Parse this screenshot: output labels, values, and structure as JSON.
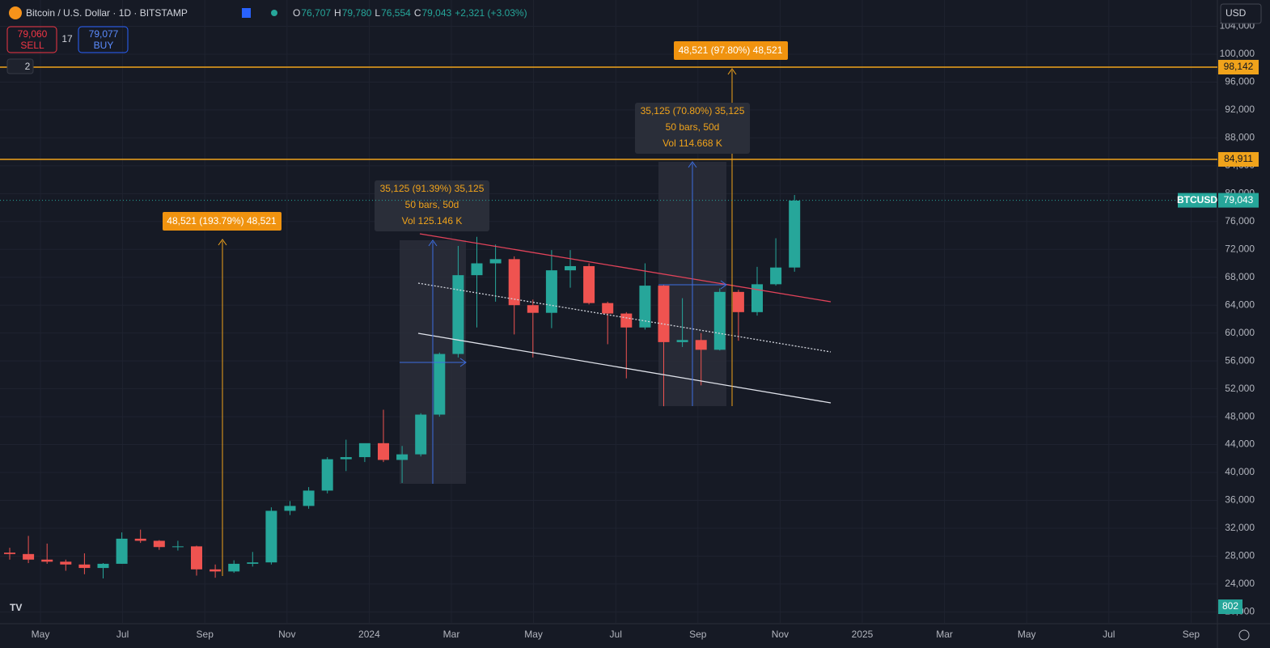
{
  "header": {
    "symbol": "Bitcoin / U.S. Dollar · 1D · BITSTAMP",
    "ohlc": [
      {
        "label": "O",
        "value": "76,707"
      },
      {
        "label": "H",
        "value": "79,780"
      },
      {
        "label": "L",
        "value": "76,554"
      },
      {
        "label": "C",
        "value": "79,043"
      }
    ],
    "change": "+2,321 (+3.03%)"
  },
  "trade": {
    "sell_price": "79,060",
    "sell": "SELL",
    "spread": "17",
    "buy_price": "79,077",
    "buy": "BUY"
  },
  "layers": "2",
  "currency": "USD",
  "chart": {
    "type": "candlestick",
    "ylim": [
      18418,
      107775
    ],
    "yticks": [
      {
        "value": 20000,
        "label": "20,000"
      },
      {
        "value": 24000,
        "label": "24,000"
      },
      {
        "value": 28000,
        "label": "28,000"
      },
      {
        "value": 32000,
        "label": "32,000"
      },
      {
        "value": 36000,
        "label": "36,000"
      },
      {
        "value": 40000,
        "label": "40,000"
      },
      {
        "value": 44000,
        "label": "44,000"
      },
      {
        "value": 48000,
        "label": "48,000"
      },
      {
        "value": 52000,
        "label": "52,000"
      },
      {
        "value": 56000,
        "label": "56,000"
      },
      {
        "value": 60000,
        "label": "60,000"
      },
      {
        "value": 64000,
        "label": "64,000"
      },
      {
        "value": 68000,
        "label": "68,000"
      },
      {
        "value": 72000,
        "label": "72,000"
      },
      {
        "value": 76000,
        "label": "76,000"
      },
      {
        "value": 80000,
        "label": "80,000"
      },
      {
        "value": 84000,
        "label": "84,000"
      },
      {
        "value": 88000,
        "label": "88,000"
      },
      {
        "value": 92000,
        "label": "92,000"
      },
      {
        "value": 96000,
        "label": "96,000"
      },
      {
        "value": 100000,
        "label": "100,000"
      },
      {
        "value": 104000,
        "label": "104,000"
      }
    ],
    "xticks": [
      "May",
      "Jul",
      "Sep",
      "Nov",
      "2024",
      "Mar",
      "May",
      "Jul",
      "Sep",
      "Nov",
      "2025",
      "Mar",
      "May",
      "Jul",
      "Sep"
    ],
    "candles": {
      "open": [
        28500,
        28300,
        27500,
        27200,
        26800,
        26300,
        26900,
        30500,
        30200,
        29300,
        29400,
        26100,
        25800,
        26900,
        27100,
        34500,
        35200,
        37400,
        41900,
        42200,
        44200,
        41800,
        42600,
        48300,
        57000,
        68300,
        70000,
        70600,
        64000,
        62900,
        69000,
        69600,
        64300,
        62800,
        60800,
        66800,
        58700,
        59000,
        57600,
        65900,
        63000,
        67000,
        69400
      ],
      "high": [
        29200,
        30900,
        29800,
        27500,
        28400,
        27000,
        31400,
        31800,
        30300,
        30200,
        29500,
        26800,
        27400,
        28600,
        35000,
        35900,
        37900,
        42200,
        44700,
        44000,
        49000,
        43800,
        48500,
        57200,
        72500,
        73800,
        72700,
        71000,
        64800,
        71900,
        71900,
        70000,
        64500,
        63000,
        70000,
        66900,
        65000,
        60000,
        66400,
        66200,
        69500,
        73600,
        79800
      ],
      "low": [
        27500,
        27000,
        26900,
        25900,
        25400,
        24800,
        26900,
        29900,
        28900,
        28800,
        25200,
        24900,
        25600,
        26500,
        26800,
        33900,
        34800,
        37000,
        40200,
        41500,
        41500,
        38500,
        42300,
        48000,
        56500,
        60800,
        64500,
        59800,
        56500,
        60700,
        66500,
        64100,
        58400,
        53500,
        60500,
        49500,
        58000,
        52500,
        57500,
        58900,
        62500,
        66800,
        68800
      ],
      "close": [
        28300,
        27500,
        27200,
        26800,
        26300,
        26900,
        30500,
        30200,
        29300,
        29400,
        26100,
        25800,
        26900,
        27100,
        34500,
        35200,
        37400,
        41900,
        42200,
        44200,
        41800,
        42600,
        48300,
        57000,
        68300,
        70000,
        70600,
        64000,
        62900,
        69000,
        69600,
        64300,
        62800,
        60800,
        66800,
        58700,
        59000,
        57600,
        65900,
        63000,
        67000,
        69400,
        79000
      ]
    },
    "levels": [
      {
        "value": 98142,
        "label": "98,142"
      },
      {
        "value": 84911,
        "label": "84,911"
      }
    ],
    "last": {
      "name": "BTCUSD",
      "value": 79043,
      "label": "79,043"
    },
    "volume_label": "802",
    "measures": [
      {
        "lines": [
          "35,125 (91.39%) 35,125",
          "50 bars, 50d",
          "Vol 125.146 K"
        ]
      },
      {
        "lines": [
          "35,125 (70.80%) 35,125",
          "50 bars, 50d",
          "Vol 114.668 K"
        ]
      }
    ],
    "targets": [
      "48,521 (193.79%) 48,521",
      "48,521 (97.80%) 48,521"
    ]
  }
}
